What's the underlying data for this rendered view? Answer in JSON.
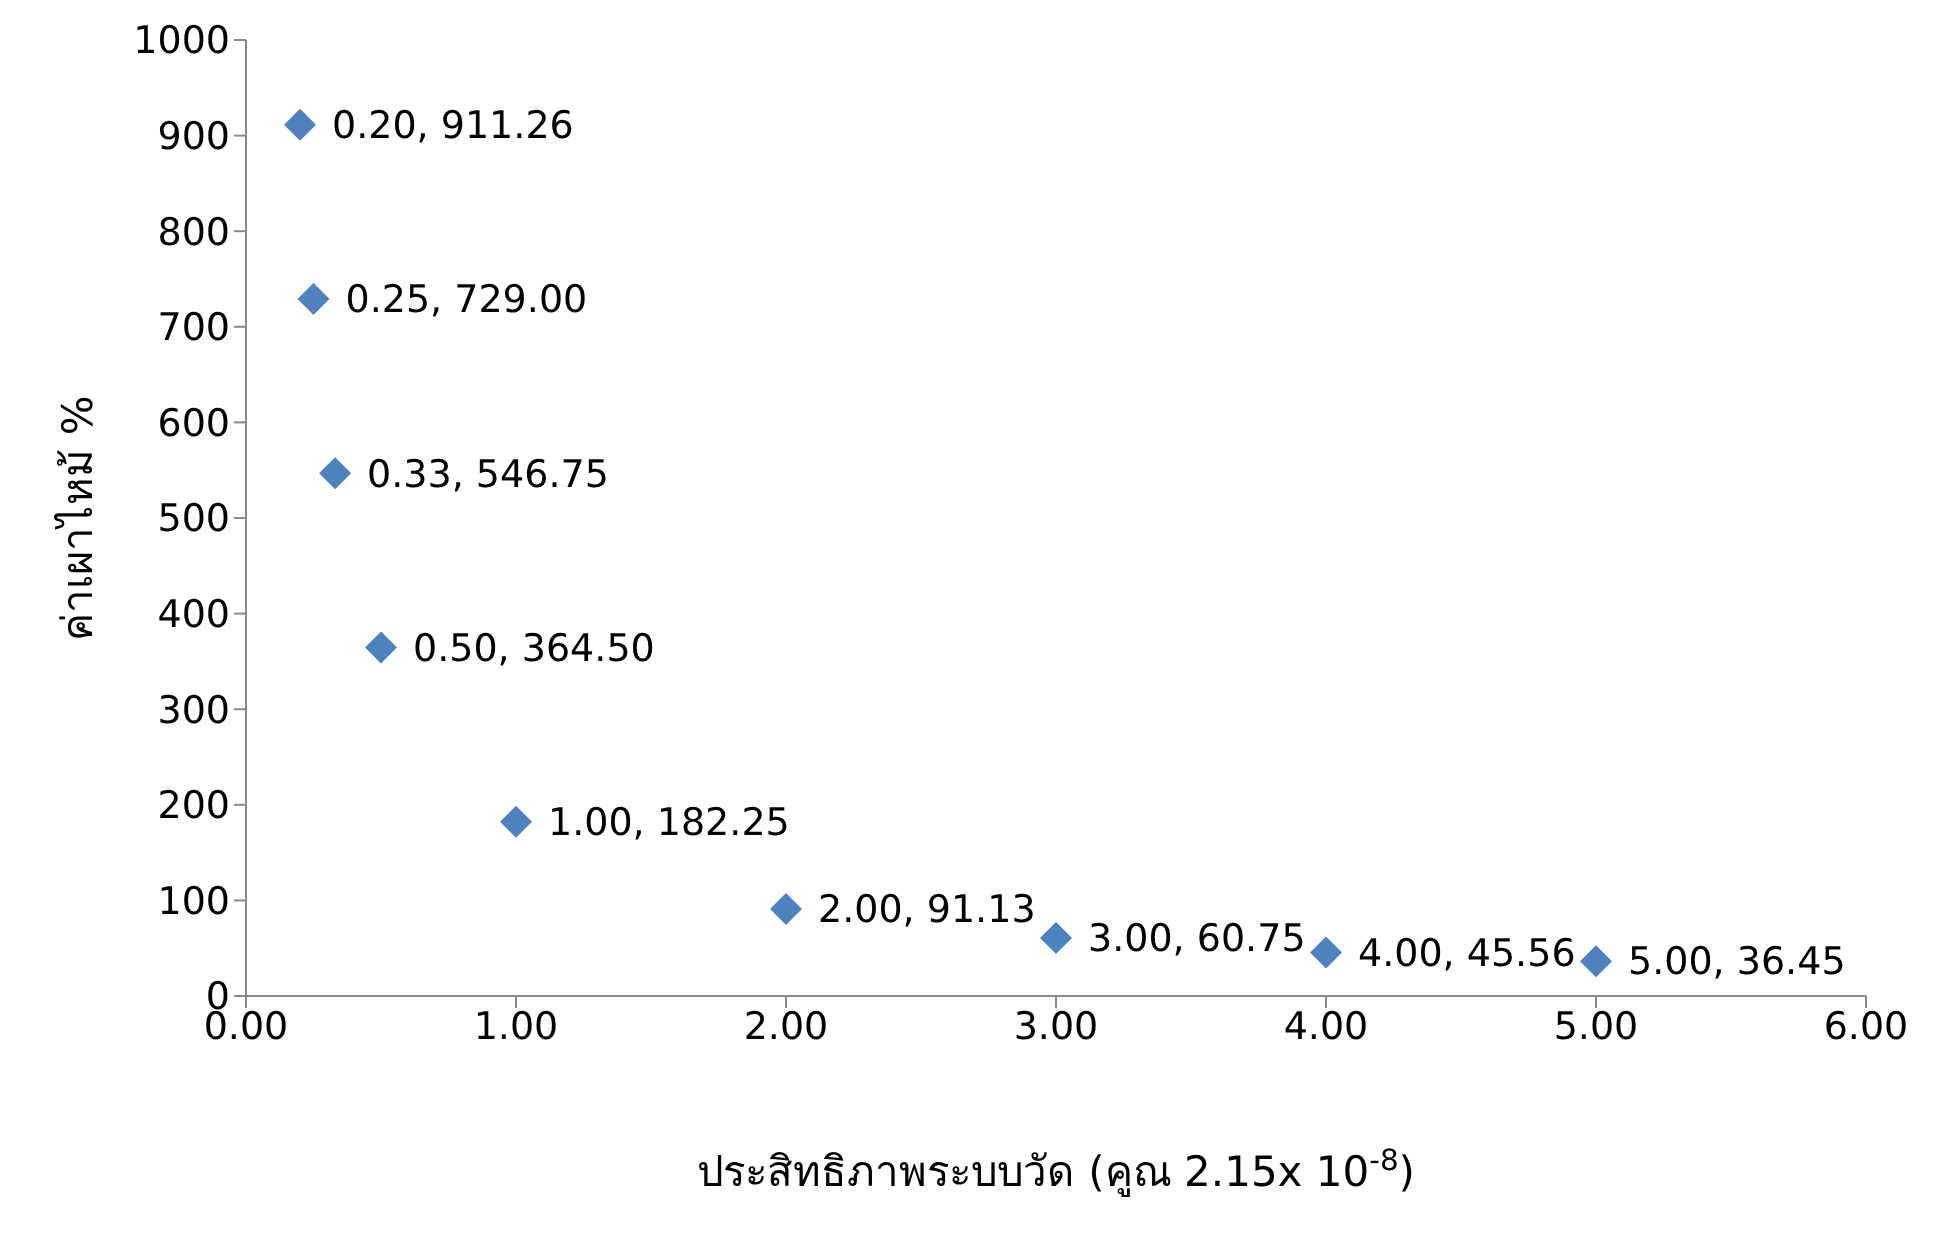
{
  "chart_data": {
    "type": "scatter",
    "xlabel": "ประสิทธิภาพระบบวัด (คูณ 2.15x 10$^{-8}$)",
    "ylabel": "ค่าเผาไหม้  %",
    "x": [
      0.2,
      0.25,
      0.33,
      0.5,
      1,
      2,
      3,
      4,
      5
    ],
    "series": [
      {
        "color": "#4f81bd",
        "values": [
          911.26,
          729,
          546.75,
          364.5,
          182.25,
          91.13,
          60.75,
          45.56,
          36.45
        ],
        "value_labels": [
          "0.20, 911.26",
          "0.25, 729.00",
          "0.33, 546.75",
          "0.50, 364.50",
          "1.00, 182.25",
          "2.00, 91.13",
          "3.00, 60.75",
          "4.00, 45.56",
          "5.00, 36.45"
        ]
      }
    ],
    "xlim": [
      0,
      6
    ],
    "xticks": [
      {
        "value": 0,
        "label": "0.00"
      },
      {
        "value": 1,
        "label": "1.00"
      },
      {
        "value": 2,
        "label": "2.00"
      },
      {
        "value": 3,
        "label": "3.00"
      },
      {
        "value": 4,
        "label": "4.00"
      },
      {
        "value": 5,
        "label": "5.00"
      },
      {
        "value": 6,
        "label": "6.00"
      }
    ],
    "ylim": [
      0,
      1000
    ],
    "yticks": [
      0,
      100,
      200,
      300,
      400,
      500,
      600,
      700,
      800,
      900,
      1000
    ],
    "grid": false,
    "legend": false,
    "marker": "diamond"
  }
}
